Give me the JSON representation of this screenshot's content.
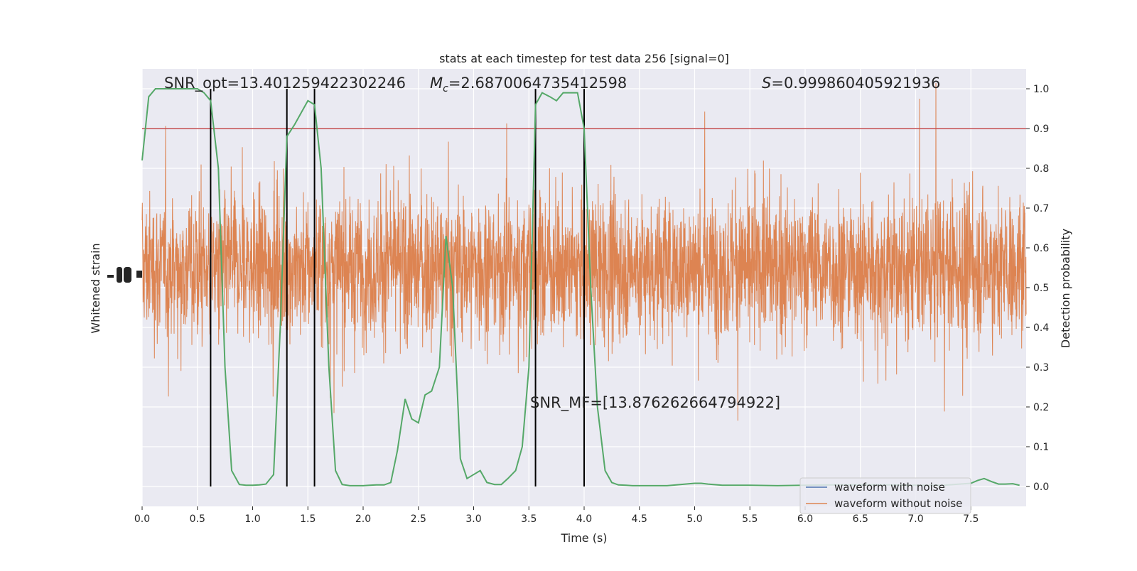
{
  "chart_data": {
    "type": "line",
    "title": "stats at each timestep for test data 256 [signal=0]",
    "xlabel": "Time (s)",
    "ylabel_left": "Whitened strain",
    "ylabel_right": "Detection probability",
    "xlim": [
      0.0,
      8.0
    ],
    "ylim_right": [
      -0.05,
      1.05
    ],
    "x_ticks": [
      "0.0",
      "0.5",
      "1.0",
      "1.5",
      "2.0",
      "2.5",
      "3.0",
      "3.5",
      "4.0",
      "4.5",
      "5.0",
      "5.5",
      "6.0",
      "6.5",
      "7.0",
      "7.5"
    ],
    "y_ticks_right": [
      "0.0",
      "0.1",
      "0.2",
      "0.3",
      "0.4",
      "0.5",
      "0.6",
      "0.7",
      "0.8",
      "0.9",
      "1.0"
    ],
    "grid": true,
    "legend_position": "lower-right",
    "annotations": {
      "snr_opt": "SNR_opt=13.401259422302246",
      "mc_symbol": "M",
      "mc_subscript": "c",
      "mc_value": "=2.6870064735412598",
      "s_symbol": "S",
      "s_value": "=0.999860405921936",
      "snr_mf": "SNR_MF=[13.876262664794922]"
    },
    "threshold": 0.9,
    "vertical_markers": [
      0.62,
      1.31,
      1.56,
      3.56,
      4.0
    ],
    "series": [
      {
        "name": "waveform with noise",
        "color": "#4c72b0"
      },
      {
        "name": "waveform without noise",
        "color": "#dd8452"
      },
      {
        "color": "#55a868",
        "x": [
          0.0,
          0.06,
          0.12,
          0.19,
          0.25,
          0.31,
          0.38,
          0.44,
          0.5,
          0.56,
          0.62,
          0.69,
          0.75,
          0.81,
          0.88,
          0.94,
          1.0,
          1.06,
          1.12,
          1.19,
          1.25,
          1.31,
          1.38,
          1.44,
          1.5,
          1.56,
          1.62,
          1.69,
          1.75,
          1.81,
          1.88,
          1.94,
          2.0,
          2.06,
          2.12,
          2.19,
          2.25,
          2.31,
          2.38,
          2.44,
          2.5,
          2.56,
          2.62,
          2.69,
          2.75,
          2.81,
          2.88,
          2.94,
          3.0,
          3.06,
          3.12,
          3.19,
          3.25,
          3.31,
          3.38,
          3.44,
          3.5,
          3.56,
          3.62,
          3.69,
          3.75,
          3.81,
          3.88,
          3.94,
          4.0,
          4.06,
          4.12,
          4.19,
          4.25,
          4.31,
          4.38,
          4.44,
          4.5,
          4.75,
          5.0,
          5.06,
          5.12,
          5.25,
          5.5,
          5.75,
          6.0,
          6.25,
          6.5,
          6.75,
          7.0,
          7.25,
          7.5,
          7.56,
          7.62,
          7.69,
          7.75,
          7.81,
          7.88,
          7.94
        ],
        "values": [
          0.82,
          0.98,
          1.0,
          1.0,
          1.0,
          1.0,
          1.0,
          1.0,
          1.0,
          0.99,
          0.97,
          0.8,
          0.3,
          0.04,
          0.005,
          0.003,
          0.003,
          0.004,
          0.006,
          0.03,
          0.4,
          0.88,
          0.91,
          0.94,
          0.97,
          0.96,
          0.8,
          0.3,
          0.04,
          0.005,
          0.002,
          0.002,
          0.002,
          0.003,
          0.004,
          0.004,
          0.01,
          0.09,
          0.22,
          0.17,
          0.16,
          0.23,
          0.24,
          0.3,
          0.63,
          0.5,
          0.07,
          0.02,
          0.03,
          0.04,
          0.01,
          0.005,
          0.005,
          0.02,
          0.04,
          0.1,
          0.3,
          0.96,
          0.99,
          0.98,
          0.97,
          0.99,
          0.99,
          0.99,
          0.9,
          0.5,
          0.2,
          0.04,
          0.01,
          0.004,
          0.003,
          0.002,
          0.002,
          0.002,
          0.008,
          0.008,
          0.006,
          0.003,
          0.003,
          0.002,
          0.003,
          0.004,
          0.004,
          0.004,
          0.003,
          0.003,
          0.008,
          0.015,
          0.02,
          0.012,
          0.006,
          0.006,
          0.007,
          0.003
        ]
      }
    ]
  }
}
